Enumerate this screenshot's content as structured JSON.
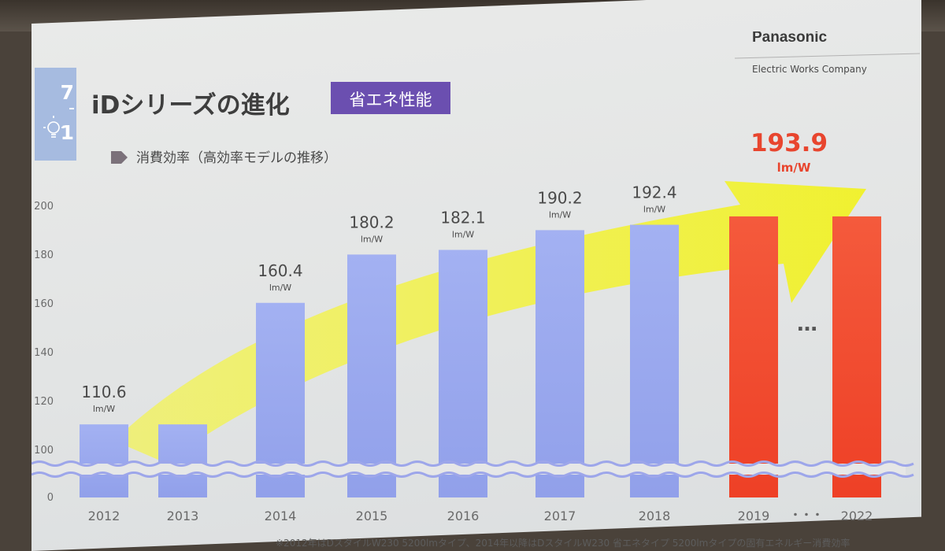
{
  "brand": {
    "logo_text": "Panasonic",
    "company": "Electric Works Company"
  },
  "slide": {
    "number_top": "7",
    "number_bottom": "1",
    "title": "iDシリーズの進化",
    "badge": "省エネ性能",
    "subtitle": "消費効率（高効率モデルの推移）",
    "footnote": "※2012年はDスタイルW230 5200lmタイプ、2014年以降はDスタイルW230 省エネタイプ 5200lmタイプの固有エネルギー消費効率",
    "ellipsis_chart": "…",
    "ellipsis_axis": "・・・"
  },
  "colors": {
    "bar_blue": "#99a8ee",
    "bar_red": "#f04a32",
    "highlight_text": "#e8452e",
    "arrow_yellow": "#f4f42a",
    "badge_bg": "#6b4fb0",
    "axis_text": "#6a6a6a",
    "wave_line": "#9da6ea"
  },
  "chart_data": {
    "type": "bar",
    "categories": [
      "2012",
      "2013",
      "2014",
      "2015",
      "2016",
      "2017",
      "2018",
      "2019",
      "2022"
    ],
    "values": [
      110.6,
      110.6,
      160.4,
      180.2,
      182.1,
      190.2,
      192.4,
      193.9,
      193.9
    ],
    "labels": [
      {
        "category": "2012",
        "value": "110.6",
        "unit": "lm/W"
      },
      {
        "category": "2014",
        "value": "160.4",
        "unit": "lm/W"
      },
      {
        "category": "2015",
        "value": "180.2",
        "unit": "lm/W"
      },
      {
        "category": "2016",
        "value": "182.1",
        "unit": "lm/W"
      },
      {
        "category": "2017",
        "value": "190.2",
        "unit": "lm/W"
      },
      {
        "category": "2018",
        "value": "192.4",
        "unit": "lm/W"
      },
      {
        "category": "2019",
        "value": "193.9",
        "unit": "lm/W",
        "highlight": true
      }
    ],
    "highlight_categories": [
      "2019",
      "2022"
    ],
    "yticks": [
      0,
      100,
      120,
      140,
      160,
      180,
      200
    ],
    "ylim": [
      0,
      200
    ],
    "axis_break": "between 0 and 100",
    "gap_after": "2019",
    "grid": false,
    "legend": "none",
    "title": "消費効率（高効率モデルの推移）"
  }
}
